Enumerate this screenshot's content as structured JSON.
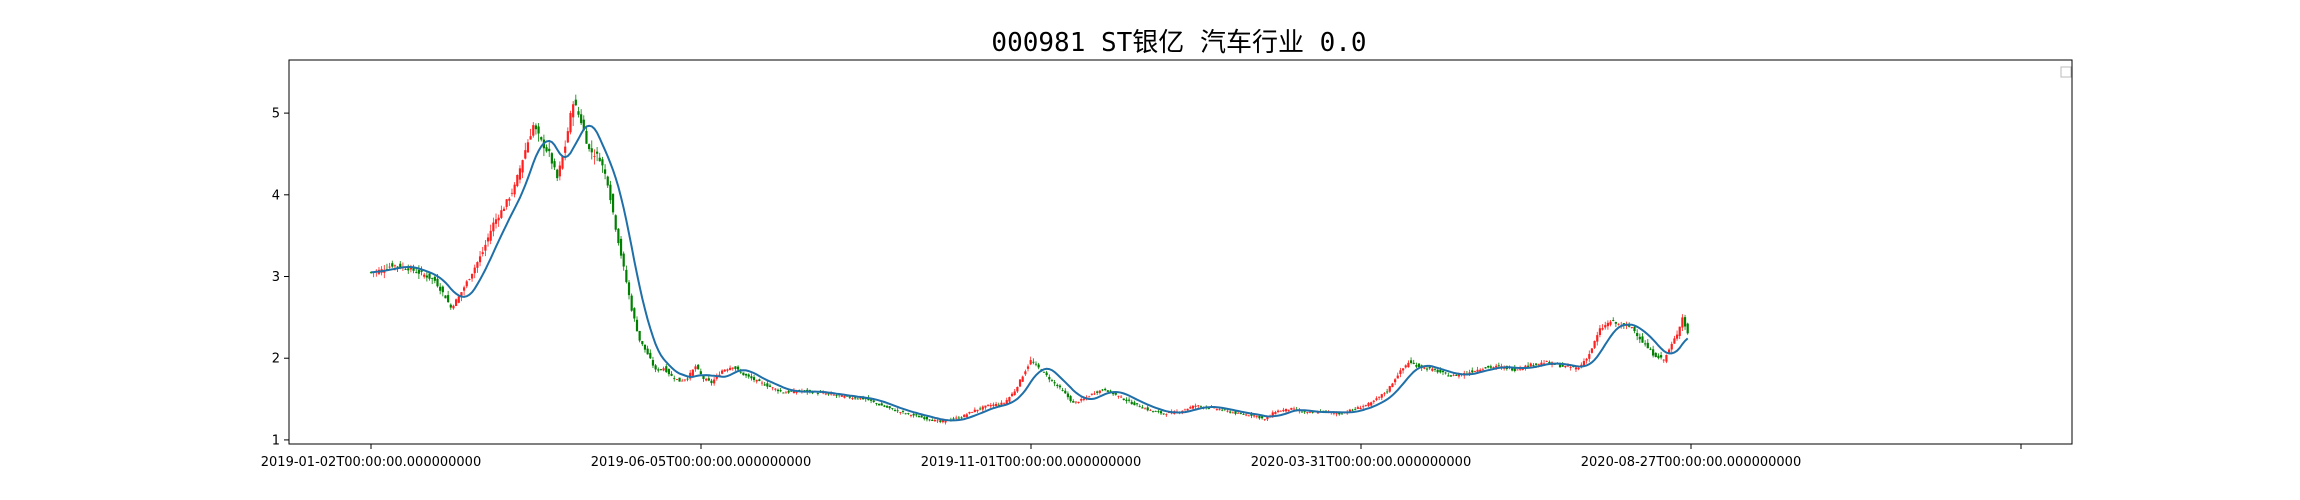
{
  "chart_data": {
    "type": "candlestick",
    "title": "000981 ST银亿 汽车行业 0.0",
    "xlabel": "",
    "ylabel": "",
    "ylim": [
      0.95,
      5.65
    ],
    "yticks": [
      1,
      2,
      3,
      4,
      5
    ],
    "xticks": [
      "2019-01-02T00:00:00.000000000",
      "2019-06-05T00:00:00.000000000",
      "2019-11-01T00:00:00.000000000",
      "2020-03-31T00:00:00.000000000",
      "2020-08-27T00:00:00.000000000",
      ""
    ],
    "up_color": "#ff2020",
    "down_color": "#008000",
    "ma_color": "#1f6fa8",
    "legend_position": "top-right",
    "legend_entries": [],
    "close_anchors": [
      [
        0,
        3.05
      ],
      [
        4,
        3.08
      ],
      [
        8,
        3.14
      ],
      [
        14,
        3.1
      ],
      [
        20,
        3.02
      ],
      [
        24,
        2.95
      ],
      [
        28,
        2.75
      ],
      [
        30,
        2.62
      ],
      [
        33,
        2.75
      ],
      [
        38,
        3.05
      ],
      [
        42,
        3.3
      ],
      [
        46,
        3.65
      ],
      [
        50,
        3.85
      ],
      [
        54,
        4.1
      ],
      [
        58,
        4.55
      ],
      [
        61,
        4.85
      ],
      [
        64,
        4.65
      ],
      [
        67,
        4.5
      ],
      [
        70,
        4.2
      ],
      [
        73,
        4.6
      ],
      [
        76,
        5.15
      ],
      [
        79,
        4.9
      ],
      [
        82,
        4.55
      ],
      [
        86,
        4.45
      ],
      [
        89,
        4.15
      ],
      [
        92,
        3.6
      ],
      [
        95,
        3.1
      ],
      [
        98,
        2.6
      ],
      [
        101,
        2.22
      ],
      [
        104,
        2.05
      ],
      [
        107,
        1.85
      ],
      [
        110,
        1.88
      ],
      [
        113,
        1.78
      ],
      [
        116,
        1.72
      ],
      [
        119,
        1.76
      ],
      [
        122,
        1.9
      ],
      [
        125,
        1.75
      ],
      [
        128,
        1.7
      ],
      [
        132,
        1.85
      ],
      [
        136,
        1.9
      ],
      [
        140,
        1.8
      ],
      [
        145,
        1.72
      ],
      [
        150,
        1.65
      ],
      [
        155,
        1.58
      ],
      [
        162,
        1.6
      ],
      [
        170,
        1.57
      ],
      [
        178,
        1.53
      ],
      [
        186,
        1.5
      ],
      [
        192,
        1.42
      ],
      [
        198,
        1.35
      ],
      [
        204,
        1.3
      ],
      [
        210,
        1.25
      ],
      [
        214,
        1.22
      ],
      [
        218,
        1.25
      ],
      [
        222,
        1.28
      ],
      [
        226,
        1.35
      ],
      [
        232,
        1.42
      ],
      [
        238,
        1.45
      ],
      [
        242,
        1.6
      ],
      [
        246,
        1.85
      ],
      [
        248,
        1.97
      ],
      [
        252,
        1.85
      ],
      [
        256,
        1.72
      ],
      [
        260,
        1.6
      ],
      [
        264,
        1.45
      ],
      [
        268,
        1.5
      ],
      [
        272,
        1.58
      ],
      [
        276,
        1.62
      ],
      [
        280,
        1.55
      ],
      [
        286,
        1.45
      ],
      [
        292,
        1.37
      ],
      [
        298,
        1.32
      ],
      [
        304,
        1.35
      ],
      [
        310,
        1.42
      ],
      [
        318,
        1.38
      ],
      [
        326,
        1.32
      ],
      [
        332,
        1.3
      ],
      [
        336,
        1.25
      ],
      [
        340,
        1.35
      ],
      [
        346,
        1.38
      ],
      [
        352,
        1.33
      ],
      [
        358,
        1.35
      ],
      [
        364,
        1.32
      ],
      [
        370,
        1.38
      ],
      [
        376,
        1.45
      ],
      [
        382,
        1.6
      ],
      [
        386,
        1.8
      ],
      [
        390,
        1.95
      ],
      [
        394,
        1.9
      ],
      [
        400,
        1.85
      ],
      [
        406,
        1.78
      ],
      [
        412,
        1.82
      ],
      [
        418,
        1.88
      ],
      [
        424,
        1.9
      ],
      [
        430,
        1.86
      ],
      [
        436,
        1.92
      ],
      [
        442,
        1.95
      ],
      [
        448,
        1.9
      ],
      [
        454,
        1.88
      ],
      [
        458,
        2.05
      ],
      [
        462,
        2.35
      ],
      [
        466,
        2.45
      ],
      [
        470,
        2.4
      ],
      [
        474,
        2.38
      ],
      [
        478,
        2.2
      ],
      [
        482,
        2.05
      ],
      [
        486,
        1.98
      ],
      [
        488,
        2.1
      ],
      [
        491,
        2.3
      ],
      [
        493,
        2.5
      ],
      [
        495,
        2.3
      ]
    ]
  }
}
